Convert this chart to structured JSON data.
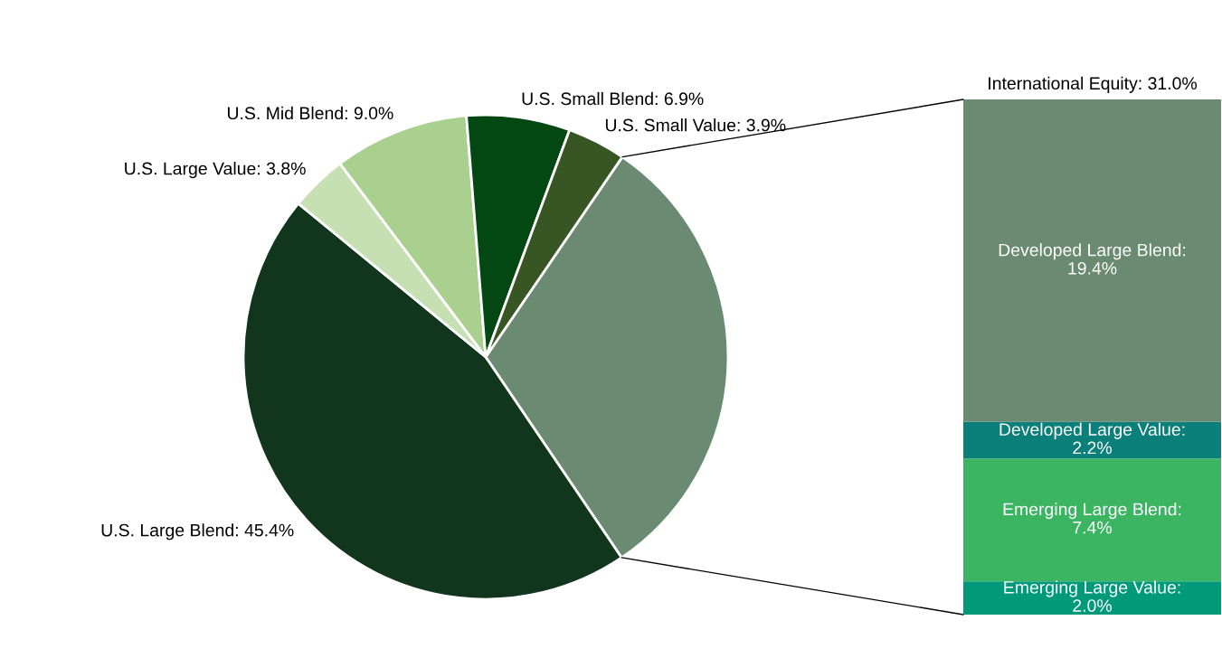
{
  "chart_data": [
    {
      "type": "pie",
      "categories": [
        null,
        "U.S. Large Blend",
        "U.S. Large Value",
        "U.S. Mid Blend",
        "U.S. Small Blend",
        "U.S. Small Value"
      ],
      "values": [
        31.0,
        45.4,
        3.8,
        9.0,
        6.9,
        3.9
      ],
      "value_labels": [
        null,
        "45.4%",
        "3.8%",
        "9.0%",
        "6.9%",
        "3.9%"
      ],
      "colors": [
        "#6a8b72",
        "#12361d",
        "#c6e0b4",
        "#a9d08e",
        "#034712",
        "#375623"
      ],
      "legend": false
    },
    {
      "type": "bar",
      "title": "International Equity: 31.0%",
      "stacked": true,
      "categories": [
        null
      ],
      "tick_labels": false,
      "legend": false,
      "series": [
        {
          "name": "Emerging Large Value:",
          "color": "#009a7a",
          "values": [
            2.0
          ],
          "value_labels": [
            "2.0%"
          ]
        },
        {
          "name": "Emerging Large Blend:",
          "color": "#3cb563",
          "values": [
            7.4
          ],
          "value_labels": [
            "7.4%"
          ]
        },
        {
          "name": "Developed Large Value:",
          "color": "#0b7f7a",
          "values": [
            2.2
          ],
          "value_labels": [
            "2.2%"
          ]
        },
        {
          "name": "Developed Large Blend:",
          "color": "#6a8b72",
          "values": [
            19.4
          ],
          "value_labels": [
            "19.4%"
          ]
        }
      ]
    }
  ]
}
